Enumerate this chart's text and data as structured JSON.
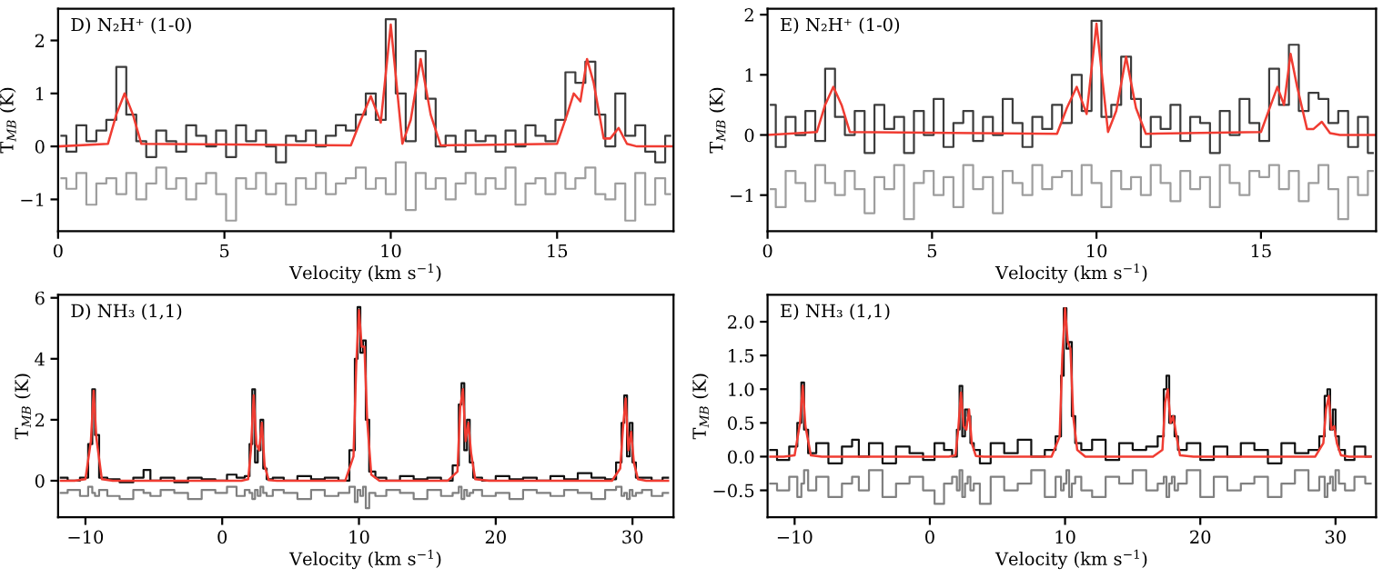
{
  "chart_data": [
    {
      "type": "step",
      "annotations": [
        "D) N₂H⁺ (1-0)"
      ],
      "xlabel": "Velocity (km s$^{−1}$)",
      "ylabel": "T$_{MB}$ (K)",
      "xlim": [
        0,
        18.5
      ],
      "ylim": [
        -1.6,
        2.6
      ],
      "xticks": [
        0,
        5,
        10,
        15
      ],
      "yticks": [
        {
          "value": -1,
          "label": "−1"
        },
        0,
        1,
        2
      ],
      "x": [
        0.1,
        0.4,
        0.7,
        1.0,
        1.3,
        1.6,
        1.9,
        2.2,
        2.5,
        2.8,
        3.1,
        3.4,
        3.7,
        4.0,
        4.3,
        4.6,
        4.9,
        5.2,
        5.5,
        5.8,
        6.1,
        6.4,
        6.7,
        7.0,
        7.3,
        7.6,
        7.9,
        8.2,
        8.5,
        8.8,
        9.1,
        9.4,
        9.7,
        10.0,
        10.3,
        10.6,
        10.9,
        11.2,
        11.5,
        11.8,
        12.1,
        12.4,
        12.7,
        13.0,
        13.3,
        13.6,
        13.9,
        14.2,
        14.5,
        14.8,
        15.1,
        15.4,
        15.7,
        16.0,
        16.3,
        16.6,
        16.9,
        17.2,
        17.5,
        17.8,
        18.1,
        18.4
      ],
      "series": [
        {
          "color": "#9e9e9e",
          "values": [
            -0.6,
            -0.8,
            -0.5,
            -1.1,
            -0.7,
            -0.6,
            -0.9,
            -0.5,
            -1.0,
            -0.7,
            -0.4,
            -0.8,
            -0.6,
            -1.0,
            -0.7,
            -0.5,
            -0.9,
            -1.4,
            -0.6,
            -0.8,
            -0.5,
            -0.9,
            -0.7,
            -1.1,
            -0.6,
            -0.8,
            -0.5,
            -0.9,
            -0.7,
            -0.6,
            -0.4,
            -0.8,
            -0.6,
            -0.9,
            -0.3,
            -1.2,
            -0.5,
            -0.8,
            -0.6,
            -1.0,
            -0.7,
            -0.5,
            -0.9,
            -0.6,
            -0.8,
            -0.4,
            -1.1,
            -0.7,
            -0.6,
            -0.9,
            -0.5,
            -0.8,
            -0.6,
            -0.4,
            -0.9,
            -1.0,
            -0.7,
            -1.4,
            -0.5,
            -1.1,
            -0.6,
            -0.9
          ]
        },
        {
          "color": "#3c3c3c",
          "values": [
            0.2,
            -0.1,
            0.4,
            0.1,
            0.3,
            0.5,
            1.5,
            0.6,
            0.1,
            -0.2,
            0.3,
            0.1,
            -0.1,
            0.4,
            0.2,
            0.0,
            0.3,
            -0.2,
            0.4,
            0.1,
            0.3,
            0.0,
            -0.3,
            0.2,
            0.1,
            0.3,
            0.0,
            0.2,
            0.4,
            0.3,
            0.6,
            1.0,
            0.5,
            2.4,
            1.0,
            0.1,
            1.8,
            0.9,
            0.0,
            0.2,
            -0.1,
            0.3,
            0.1,
            0.2,
            -0.1,
            0.3,
            0.0,
            0.4,
            0.2,
            0.1,
            0.5,
            1.4,
            1.2,
            1.6,
            0.6,
            0.0,
            1.0,
            0.2,
            0.4,
            -0.1,
            -0.3,
            0.2
          ]
        },
        {
          "type": "line",
          "color": "#f03c32",
          "x": [
            0,
            1.5,
            1.75,
            2.0,
            2.25,
            2.5,
            8.8,
            9.1,
            9.4,
            9.7,
            10.0,
            10.35,
            10.6,
            10.9,
            11.2,
            11.5,
            15.0,
            15.3,
            15.5,
            15.7,
            15.9,
            16.1,
            16.4,
            16.6,
            16.85,
            17.1,
            17.4,
            18.5
          ],
          "values": [
            0,
            0.05,
            0.6,
            1.0,
            0.6,
            0.05,
            0.02,
            0.5,
            0.95,
            0.45,
            2.3,
            0.05,
            0.5,
            1.65,
            0.6,
            0.02,
            0.05,
            0.6,
            1.0,
            0.85,
            1.65,
            1.2,
            0.15,
            0.15,
            0.35,
            0.05,
            0,
            0
          ]
        }
      ]
    },
    {
      "type": "step",
      "annotations": [
        "E) N₂H⁺ (1-0)"
      ],
      "xlabel": "Velocity (km s$^{−1}$)",
      "ylabel": "T$_{MB}$ (K)",
      "xlim": [
        0,
        18.5
      ],
      "ylim": [
        -1.6,
        2.1
      ],
      "xticks": [
        0,
        5,
        10,
        15
      ],
      "yticks": [
        {
          "value": -1,
          "label": "−1"
        },
        0,
        1,
        2
      ],
      "x": [
        0.1,
        0.4,
        0.7,
        1.0,
        1.3,
        1.6,
        1.9,
        2.2,
        2.5,
        2.8,
        3.1,
        3.4,
        3.7,
        4.0,
        4.3,
        4.6,
        4.9,
        5.2,
        5.5,
        5.8,
        6.1,
        6.4,
        6.7,
        7.0,
        7.3,
        7.6,
        7.9,
        8.2,
        8.5,
        8.8,
        9.1,
        9.4,
        9.7,
        10.0,
        10.3,
        10.6,
        10.9,
        11.2,
        11.5,
        11.8,
        12.1,
        12.4,
        12.7,
        13.0,
        13.3,
        13.6,
        13.9,
        14.2,
        14.5,
        14.8,
        15.1,
        15.4,
        15.7,
        16.0,
        16.3,
        16.6,
        16.9,
        17.2,
        17.5,
        17.8,
        18.1,
        18.4
      ],
      "series": [
        {
          "color": "#9e9e9e",
          "values": [
            -0.9,
            -1.2,
            -0.6,
            -0.8,
            -1.1,
            -0.5,
            -0.8,
            -1.0,
            -0.6,
            -0.9,
            -1.3,
            -0.7,
            -0.9,
            -0.5,
            -1.4,
            -0.8,
            -0.6,
            -1.0,
            -0.7,
            -1.2,
            -0.5,
            -0.9,
            -0.7,
            -1.3,
            -0.6,
            -0.8,
            -1.0,
            -0.5,
            -0.9,
            -0.7,
            -0.6,
            -1.0,
            -0.5,
            -0.8,
            -1.2,
            -0.6,
            -0.9,
            -0.7,
            -1.0,
            -0.5,
            -0.8,
            -1.1,
            -0.6,
            -0.9,
            -0.7,
            -1.2,
            -0.5,
            -0.8,
            -1.0,
            -0.6,
            -0.7,
            -0.5,
            -0.9,
            -0.6,
            -1.1,
            -0.8,
            -0.5,
            -0.9,
            -1.4,
            -0.7,
            -1.0,
            -0.6
          ]
        },
        {
          "color": "#3c3c3c",
          "values": [
            0.5,
            -0.2,
            0.3,
            0.0,
            0.4,
            -0.1,
            1.1,
            0.3,
            0.0,
            0.4,
            -0.3,
            0.5,
            0.1,
            0.3,
            -0.3,
            0.4,
            0.0,
            0.6,
            -0.2,
            0.2,
            0.4,
            -0.1,
            0.3,
            0.0,
            0.6,
            0.2,
            -0.2,
            0.3,
            0.1,
            0.5,
            0.2,
            1.0,
            0.4,
            1.9,
            0.3,
            0.5,
            1.3,
            0.6,
            -0.2,
            0.3,
            0.1,
            0.5,
            -0.1,
            0.3,
            0.2,
            -0.3,
            0.4,
            0.0,
            0.6,
            0.2,
            -0.1,
            1.1,
            0.5,
            1.5,
            0.4,
            0.7,
            0.6,
            0.2,
            0.4,
            -0.2,
            0.3,
            -0.3
          ]
        },
        {
          "type": "line",
          "color": "#f03c32",
          "x": [
            0,
            1.5,
            1.75,
            2.0,
            2.25,
            2.5,
            8.8,
            9.1,
            9.4,
            9.7,
            10.0,
            10.35,
            10.6,
            10.9,
            11.2,
            11.5,
            15.0,
            15.3,
            15.5,
            15.7,
            15.9,
            16.1,
            16.4,
            16.6,
            16.85,
            17.1,
            17.4,
            18.5
          ],
          "values": [
            0,
            0.05,
            0.5,
            0.8,
            0.5,
            0.05,
            0.02,
            0.45,
            0.8,
            0.35,
            1.85,
            0.05,
            0.4,
            1.3,
            0.45,
            0.02,
            0.05,
            0.5,
            0.8,
            0.5,
            1.35,
            0.8,
            0.1,
            0.1,
            0.22,
            0.03,
            0,
            0
          ]
        }
      ]
    },
    {
      "type": "step",
      "annotations": [
        "D) NH₃ (1,1)"
      ],
      "xlabel": "Velocity (km s$^{−1}$)",
      "ylabel": "T$_{MB}$ (K)",
      "xlim": [
        -12,
        33
      ],
      "ylim": [
        -1.2,
        6.1
      ],
      "xticks": [
        {
          "value": -10,
          "label": "−10"
        },
        0,
        10,
        20,
        30
      ],
      "yticks": [
        0,
        2,
        4,
        6
      ],
      "x": [
        -11.8,
        -10.8,
        -10.0,
        -9.6,
        -9.4,
        -9.2,
        -8.8,
        -8.0,
        -7.0,
        -6.0,
        -5.5,
        -5.0,
        -4.0,
        -3.0,
        -2.0,
        -1.0,
        0.0,
        0.7,
        1.4,
        1.9,
        2.1,
        2.3,
        2.5,
        2.7,
        2.9,
        3.1,
        3.4,
        4.0,
        5.0,
        6.0,
        7.0,
        8.0,
        9.0,
        9.6,
        9.8,
        10.0,
        10.2,
        10.4,
        10.6,
        10.9,
        11.5,
        12.5,
        13.5,
        14.5,
        15.5,
        16.5,
        17.2,
        17.4,
        17.6,
        17.8,
        18.0,
        18.2,
        18.5,
        19.5,
        20.5,
        21.5,
        22.5,
        23.5,
        24.5,
        25.5,
        26.5,
        27.5,
        28.5,
        29.1,
        29.3,
        29.5,
        29.7,
        29.9,
        30.1,
        30.4,
        31.0,
        31.8,
        32.6
      ],
      "series": [
        {
          "color": "#808080",
          "values": [
            -0.4,
            -0.3,
            -0.5,
            -0.2,
            -0.4,
            -0.5,
            -0.3,
            -0.5,
            -0.6,
            -0.3,
            -0.4,
            -0.5,
            -0.3,
            -0.4,
            -0.6,
            -0.3,
            -0.4,
            -0.2,
            -0.5,
            -0.3,
            -0.4,
            -0.6,
            -0.3,
            -0.5,
            -0.2,
            -0.4,
            -0.5,
            -0.3,
            -0.4,
            -0.6,
            -0.3,
            -0.5,
            -0.4,
            -0.2,
            -0.7,
            -0.3,
            -0.5,
            -0.2,
            -0.9,
            -0.4,
            -0.5,
            -0.3,
            -0.4,
            -0.6,
            -0.3,
            -0.5,
            -0.4,
            -0.2,
            -0.6,
            -0.3,
            -0.5,
            -0.4,
            -0.3,
            -0.5,
            -0.4,
            -0.6,
            -0.3,
            -0.4,
            -0.5,
            -0.3,
            -0.4,
            -0.6,
            -0.3,
            -0.2,
            -0.5,
            -0.4,
            -0.6,
            -0.3,
            -0.5,
            -0.4,
            -0.3,
            -0.5,
            -0.4
          ]
        },
        {
          "color": "#111111",
          "values": [
            0.1,
            0.0,
            0.1,
            1.2,
            3.0,
            1.5,
            0.1,
            0.05,
            -0.05,
            0.1,
            0.35,
            0.0,
            0.1,
            -0.05,
            0.1,
            0.05,
            0.0,
            0.2,
            0.1,
            0.15,
            1.2,
            3.0,
            0.6,
            1.0,
            2.0,
            0.4,
            0.05,
            0.1,
            0.0,
            0.15,
            0.05,
            0.1,
            0.0,
            1.0,
            4.0,
            5.7,
            4.2,
            4.6,
            2.0,
            0.3,
            0.1,
            0.0,
            0.15,
            0.05,
            0.1,
            0.0,
            0.5,
            2.5,
            3.2,
            1.0,
            2.0,
            0.6,
            0.1,
            0.0,
            0.15,
            0.05,
            0.1,
            0.0,
            0.15,
            0.05,
            0.25,
            0.1,
            0.05,
            0.6,
            1.9,
            2.8,
            0.8,
            1.9,
            0.6,
            0.1,
            0.1,
            0.0,
            0.1
          ]
        },
        {
          "type": "line",
          "color": "#f03c32",
          "values": [
            0,
            0,
            0.05,
            1.3,
            2.95,
            1.4,
            0.05,
            0,
            0,
            0,
            0,
            0,
            0,
            0,
            0,
            0,
            0,
            0,
            0,
            0.05,
            1.0,
            2.8,
            1.2,
            1.0,
            1.9,
            0.5,
            0.02,
            0,
            0,
            0,
            0,
            0,
            0,
            0.8,
            3.8,
            5.6,
            4.4,
            4.4,
            2.0,
            0.2,
            0,
            0,
            0,
            0,
            0,
            0,
            0.3,
            2.4,
            3.0,
            1.3,
            1.9,
            0.9,
            0.05,
            0,
            0,
            0,
            0,
            0,
            0,
            0,
            0,
            0,
            0,
            0.4,
            1.7,
            2.7,
            1.0,
            1.6,
            0.6,
            0.05,
            0,
            0,
            0
          ]
        }
      ]
    },
    {
      "type": "step",
      "annotations": [
        "E) NH₃ (1,1)"
      ],
      "xlabel": "Velocity (km s$^{−1}$)",
      "ylabel": "T$_{MB}$ (K)",
      "xlim": [
        -12,
        33
      ],
      "ylim": [
        -0.9,
        2.4
      ],
      "xticks": [
        {
          "value": -10,
          "label": "−10"
        },
        0,
        10,
        20,
        30
      ],
      "yticks": [
        {
          "value": -0.5,
          "label": "−0.5"
        },
        {
          "value": 0,
          "label": "0.0"
        },
        {
          "value": 0.5,
          "label": "0.5"
        },
        {
          "value": 1.0,
          "label": "1.0"
        },
        {
          "value": 1.5,
          "label": "1.5"
        },
        {
          "value": 2.0,
          "label": "2.0"
        }
      ],
      "x": [
        -11.8,
        -10.8,
        -10.0,
        -9.6,
        -9.4,
        -9.2,
        -8.8,
        -8.0,
        -7.0,
        -6.0,
        -5.5,
        -5.0,
        -4.0,
        -3.0,
        -2.0,
        -1.0,
        0.0,
        0.7,
        1.4,
        1.9,
        2.1,
        2.3,
        2.5,
        2.7,
        2.9,
        3.1,
        3.4,
        4.0,
        5.0,
        6.0,
        7.0,
        8.0,
        9.0,
        9.6,
        9.8,
        10.0,
        10.2,
        10.4,
        10.6,
        10.9,
        11.5,
        12.5,
        13.5,
        14.5,
        15.5,
        16.5,
        17.2,
        17.4,
        17.6,
        17.8,
        18.0,
        18.2,
        18.5,
        19.5,
        20.5,
        21.5,
        22.5,
        23.5,
        24.5,
        25.5,
        26.5,
        27.5,
        28.5,
        29.1,
        29.3,
        29.5,
        29.7,
        29.9,
        30.1,
        30.4,
        31.0,
        31.8,
        32.6
      ],
      "series": [
        {
          "color": "#808080",
          "values": [
            -0.4,
            -0.5,
            -0.3,
            -0.6,
            -0.4,
            -0.2,
            -0.5,
            -0.3,
            -0.6,
            -0.4,
            -0.3,
            -0.5,
            -0.2,
            -0.6,
            -0.4,
            -0.3,
            -0.5,
            -0.7,
            -0.4,
            -0.3,
            -0.5,
            -0.2,
            -0.6,
            -0.4,
            -0.3,
            -0.5,
            -0.4,
            -0.7,
            -0.3,
            -0.5,
            -0.4,
            -0.2,
            -0.6,
            -0.3,
            -0.5,
            -0.4,
            -0.2,
            -0.6,
            -0.4,
            -0.3,
            -0.5,
            -0.6,
            -0.3,
            -0.4,
            -0.2,
            -0.5,
            -0.4,
            -0.3,
            -0.6,
            -0.4,
            -0.3,
            -0.5,
            -0.4,
            -0.2,
            -0.6,
            -0.3,
            -0.5,
            -0.4,
            -0.3,
            -0.6,
            -0.4,
            -0.2,
            -0.5,
            -0.3,
            -0.6,
            -0.4,
            -0.3,
            -0.5,
            -0.2,
            -0.4,
            -0.5,
            -0.3,
            -0.4
          ]
        },
        {
          "color": "#111111",
          "values": [
            0.1,
            -0.05,
            0.15,
            0.5,
            1.1,
            0.4,
            0.05,
            0.2,
            -0.1,
            0.15,
            0.25,
            0.0,
            0.2,
            -0.1,
            0.15,
            0.05,
            -0.05,
            0.2,
            0.1,
            0.0,
            0.4,
            1.05,
            0.3,
            0.7,
            0.6,
            0.2,
            0.1,
            -0.1,
            0.2,
            0.05,
            0.25,
            0.0,
            0.1,
            0.3,
            1.2,
            2.2,
            1.6,
            1.7,
            0.6,
            0.2,
            0.1,
            0.25,
            -0.05,
            0.2,
            0.1,
            0.15,
            0.3,
            1.0,
            1.2,
            0.5,
            0.6,
            0.3,
            0.1,
            0.2,
            -0.05,
            0.15,
            0.0,
            0.2,
            0.1,
            -0.1,
            0.2,
            0.05,
            0.1,
            0.3,
            0.9,
            1.0,
            0.4,
            0.7,
            0.3,
            0.1,
            -0.05,
            0.15,
            0.0
          ]
        },
        {
          "type": "line",
          "color": "#f03c32",
          "values": [
            0,
            0,
            0.02,
            0.5,
            1.05,
            0.45,
            0.02,
            0,
            0,
            0,
            0,
            0,
            0,
            0,
            0,
            0,
            0,
            0,
            0,
            0.02,
            0.4,
            0.95,
            0.45,
            0.4,
            0.7,
            0.2,
            0.01,
            0,
            0,
            0,
            0,
            0,
            0,
            0.3,
            1.5,
            2.2,
            1.7,
            1.6,
            0.6,
            0.1,
            0,
            0,
            0,
            0,
            0,
            0,
            0.1,
            0.8,
            1.0,
            0.5,
            0.6,
            0.35,
            0.02,
            0,
            0,
            0,
            0,
            0,
            0,
            0,
            0,
            0,
            0,
            0.2,
            0.7,
            0.9,
            0.4,
            0.45,
            0.2,
            0.02,
            0,
            0,
            0
          ]
        }
      ]
    }
  ]
}
